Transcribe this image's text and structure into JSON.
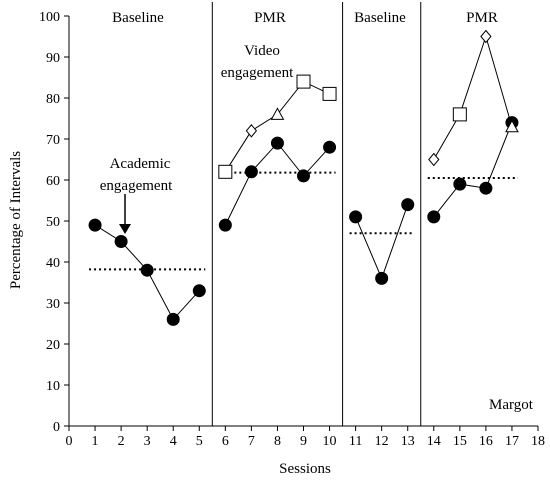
{
  "chart_data": {
    "type": "line",
    "xlabel": "Sessions",
    "ylabel": "Percentage of Intervals",
    "xlim": [
      0,
      18
    ],
    "ylim": [
      0,
      100
    ],
    "x_ticks": [
      0,
      1,
      2,
      3,
      4,
      5,
      6,
      7,
      8,
      9,
      10,
      11,
      12,
      13,
      14,
      15,
      16,
      17,
      18
    ],
    "y_ticks": [
      0,
      10,
      20,
      30,
      40,
      50,
      60,
      70,
      80,
      90,
      100
    ],
    "grid": false,
    "phase_lines_x": [
      5.5,
      10.5,
      13.5
    ],
    "phases": [
      {
        "label": "Baseline",
        "center_x": 3
      },
      {
        "label": "PMR",
        "center_x": 8
      },
      {
        "label": "Baseline",
        "center_x": 12
      },
      {
        "label": "PMR",
        "center_x": 15.5
      }
    ],
    "participant": "Margot",
    "annotations": [
      {
        "lines": [
          "Academic",
          "engagement"
        ]
      },
      {
        "lines": [
          "Video",
          "engagement"
        ]
      }
    ],
    "series": [
      {
        "segments": [
          {
            "x": [
              1,
              2,
              3,
              4,
              5
            ],
            "y": [
              49,
              45,
              38,
              26,
              33
            ]
          },
          {
            "x": [
              6,
              7,
              8,
              9,
              10
            ],
            "y": [
              49,
              62,
              69,
              61,
              68
            ]
          },
          {
            "x": [
              11,
              12,
              13
            ],
            "y": [
              51,
              36,
              54
            ]
          },
          {
            "x": [
              14,
              15,
              16,
              17
            ],
            "y": [
              51,
              59,
              58,
              74
            ]
          }
        ],
        "marker": "filled-circle"
      },
      {
        "segments": [
          {
            "x": [
              6,
              7,
              8,
              9,
              10
            ],
            "y": [
              62,
              72,
              76,
              84,
              81
            ]
          },
          {
            "x": [
              14,
              15,
              16,
              17
            ],
            "y": [
              65,
              76,
              95,
              73
            ]
          }
        ],
        "markers": [
          [
            "square",
            "diamond",
            "triangle",
            "square",
            "square"
          ],
          [
            "diamond",
            "square",
            "diamond",
            "triangle"
          ]
        ]
      }
    ],
    "mean_lines": [
      {
        "x": [
          1,
          5
        ],
        "y": 38.2
      },
      {
        "x": [
          6,
          10
        ],
        "y": 61.8
      },
      {
        "x": [
          11,
          13
        ],
        "y": 47
      },
      {
        "x": [
          14,
          17
        ],
        "y": 60.5
      }
    ]
  }
}
